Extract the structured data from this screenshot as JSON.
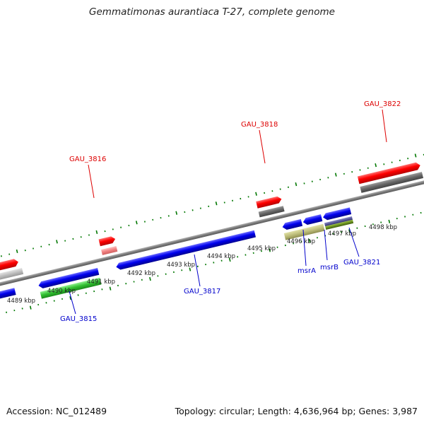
{
  "title": "Gemmatimonas aurantiaca T-27, complete genome",
  "footer": {
    "accession": "Accession: NC_012489",
    "stats": "Topology: circular; Length: 4,636,964 bp; Genes: 3,987"
  },
  "colors": {
    "forward_label": "#dd0000",
    "reverse_label": "#0000cc",
    "tick": "#007700",
    "backbone": "#888888",
    "cds_forward": "#ff0000",
    "cds_reverse": "#0000ff",
    "gene_forward": "#666666",
    "gene_reverse": "#777777"
  },
  "scale_ticks": [
    "4489 kbp",
    "4490 kbp",
    "4491 kbp",
    "4492 kbp",
    "4493 kbp",
    "4494 kbp",
    "4495 kbp",
    "4496 kbp",
    "4497 kbp",
    "4498 kbp"
  ],
  "gene_labels": {
    "forward": [
      "GAU_3816",
      "GAU_3818",
      "GAU_3822"
    ],
    "reverse": [
      "GAU_3815",
      "GAU_3817",
      "msrA",
      "msrB",
      "GAU_3821"
    ]
  }
}
